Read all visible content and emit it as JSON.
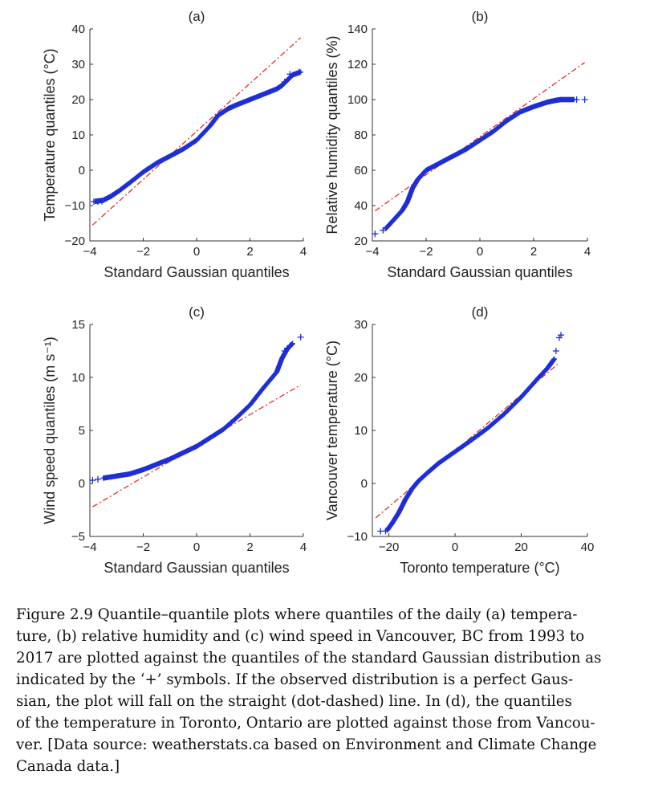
{
  "figure": {
    "caption_lines": [
      "Figure 2.9 Quantile–quantile plots where quantiles of the daily (a) tempera-",
      "ture, (b) relative humidity and (c) wind speed in Vancouver, BC from 1993 to",
      "2017 are plotted against the quantiles of the standard Gaussian distribution as",
      "indicated by the ‘+’ symbols. If the observed distribution is a perfect Gaus-",
      "sian, the plot will fall on the straight (dot-dashed) line. In (d), the quantiles",
      "of the temperature in Toronto, Ontario are plotted against those from Vancou-",
      "ver. [Data source: weatherstats.ca based on Environment and Climate Change",
      "Canada data.]"
    ]
  },
  "colors": {
    "markers": "#1f2fd6",
    "reference_line": "#e0301e",
    "axes": "#333333"
  },
  "chart_data": [
    {
      "panel": "(a)",
      "type": "scatter",
      "xlabel": "Standard Gaussian quantiles",
      "ylabel": "Temperature quantiles (°C)",
      "xlim": [
        -4,
        4
      ],
      "ylim": [
        -20,
        40
      ],
      "xticks": [
        -4,
        -2,
        0,
        2,
        4
      ],
      "yticks": [
        -20,
        -10,
        0,
        10,
        20,
        30,
        40
      ],
      "marker": "+",
      "curve": [
        [
          -3.8,
          -8.8
        ],
        [
          -3.5,
          -8.5
        ],
        [
          -3.2,
          -7.3
        ],
        [
          -2.9,
          -5.8
        ],
        [
          -2.5,
          -3.5
        ],
        [
          -2,
          -0.5
        ],
        [
          -1.5,
          2
        ],
        [
          -1,
          4
        ],
        [
          -0.5,
          6
        ],
        [
          0,
          8.5
        ],
        [
          0.5,
          12.5
        ],
        [
          0.8,
          15.5
        ],
        [
          1.2,
          17.5
        ],
        [
          1.5,
          18.5
        ],
        [
          2,
          20
        ],
        [
          2.5,
          21.5
        ],
        [
          3,
          23
        ],
        [
          3.2,
          24
        ],
        [
          3.4,
          25.5
        ],
        [
          3.6,
          27
        ],
        [
          3.9,
          27.8
        ]
      ],
      "end_markers": [
        [
          -3.85,
          -8.9
        ],
        [
          -3.7,
          -8.9
        ],
        [
          -3.55,
          -8.8
        ],
        [
          3.3,
          25
        ],
        [
          3.5,
          27.2
        ],
        [
          3.85,
          27.8
        ]
      ],
      "reference_line": [
        [
          -3.9,
          -15.5
        ],
        [
          3.9,
          37.5
        ]
      ]
    },
    {
      "panel": "(b)",
      "type": "scatter",
      "xlabel": "Standard Gaussian quantiles",
      "ylabel": "Relative humidity quantiles (%)",
      "xlim": [
        -4,
        4
      ],
      "ylim": [
        20,
        140
      ],
      "xticks": [
        -4,
        -2,
        0,
        2,
        4
      ],
      "yticks": [
        20,
        40,
        60,
        80,
        100,
        120,
        140
      ],
      "marker": "+",
      "curve": [
        [
          -3.5,
          27
        ],
        [
          -3.2,
          32
        ],
        [
          -2.9,
          37
        ],
        [
          -2.7,
          42
        ],
        [
          -2.5,
          50
        ],
        [
          -2.3,
          55
        ],
        [
          -2,
          60
        ],
        [
          -1.5,
          64
        ],
        [
          -1,
          68
        ],
        [
          -0.5,
          72
        ],
        [
          0,
          77
        ],
        [
          0.5,
          82
        ],
        [
          1,
          88
        ],
        [
          1.5,
          93
        ],
        [
          2,
          96
        ],
        [
          2.5,
          98.5
        ],
        [
          2.8,
          99.5
        ],
        [
          3,
          100
        ],
        [
          3.5,
          100
        ]
      ],
      "end_markers": [
        [
          -3.9,
          24
        ],
        [
          -3.6,
          26
        ],
        [
          3.6,
          100
        ],
        [
          3.9,
          100
        ]
      ],
      "reference_line": [
        [
          -3.9,
          37
        ],
        [
          3.9,
          121
        ]
      ]
    },
    {
      "panel": "(c)",
      "type": "scatter",
      "xlabel": "Standard Gaussian quantiles",
      "ylabel": "Wind speed quantiles (m s⁻¹)",
      "xlim": [
        -4,
        4
      ],
      "ylim": [
        -5,
        15
      ],
      "xticks": [
        -4,
        -2,
        0,
        2,
        4
      ],
      "yticks": [
        -5,
        0,
        5,
        10,
        15
      ],
      "marker": "+",
      "curve": [
        [
          -3.5,
          0.5
        ],
        [
          -3,
          0.7
        ],
        [
          -2.5,
          0.9
        ],
        [
          -2,
          1.3
        ],
        [
          -1.5,
          1.8
        ],
        [
          -1,
          2.3
        ],
        [
          -0.5,
          2.9
        ],
        [
          0,
          3.5
        ],
        [
          0.5,
          4.3
        ],
        [
          1,
          5.1
        ],
        [
          1.5,
          6.2
        ],
        [
          2,
          7.4
        ],
        [
          2.5,
          9
        ],
        [
          3,
          10.5
        ],
        [
          3.2,
          11.8
        ],
        [
          3.4,
          12.7
        ],
        [
          3.6,
          13.2
        ]
      ],
      "end_markers": [
        [
          -3.9,
          0.3
        ],
        [
          -3.7,
          0.4
        ],
        [
          3.3,
          12.5
        ],
        [
          3.5,
          13
        ],
        [
          3.9,
          13.8
        ]
      ],
      "reference_line": [
        [
          -3.9,
          -2.2
        ],
        [
          3.9,
          9.3
        ]
      ]
    },
    {
      "panel": "(d)",
      "type": "scatter",
      "xlabel": "Toronto temperature (°C)",
      "ylabel": "Vancouver temperature (°C)",
      "xlim": [
        -25,
        40
      ],
      "ylim": [
        -10,
        30
      ],
      "xticks": [
        -20,
        0,
        20,
        40
      ],
      "yticks": [
        -10,
        0,
        10,
        20,
        30
      ],
      "marker": "+",
      "curve": [
        [
          -20.5,
          -8.8
        ],
        [
          -19,
          -7.5
        ],
        [
          -17,
          -5.5
        ],
        [
          -15,
          -3
        ],
        [
          -13,
          -1
        ],
        [
          -11,
          0.5
        ],
        [
          -8,
          2.2
        ],
        [
          -5,
          3.8
        ],
        [
          0,
          6
        ],
        [
          5,
          8.2
        ],
        [
          10,
          10.5
        ],
        [
          15,
          13.2
        ],
        [
          20,
          16.3
        ],
        [
          25,
          19.8
        ],
        [
          28,
          21.8
        ],
        [
          30,
          23.5
        ]
      ],
      "end_markers": [
        [
          -22.5,
          -9
        ],
        [
          -21,
          -9
        ],
        [
          30.5,
          25
        ],
        [
          31.5,
          27.5
        ],
        [
          32,
          28
        ]
      ],
      "reference_line": [
        [
          -24,
          -6.5
        ],
        [
          31,
          22.5
        ]
      ]
    }
  ]
}
